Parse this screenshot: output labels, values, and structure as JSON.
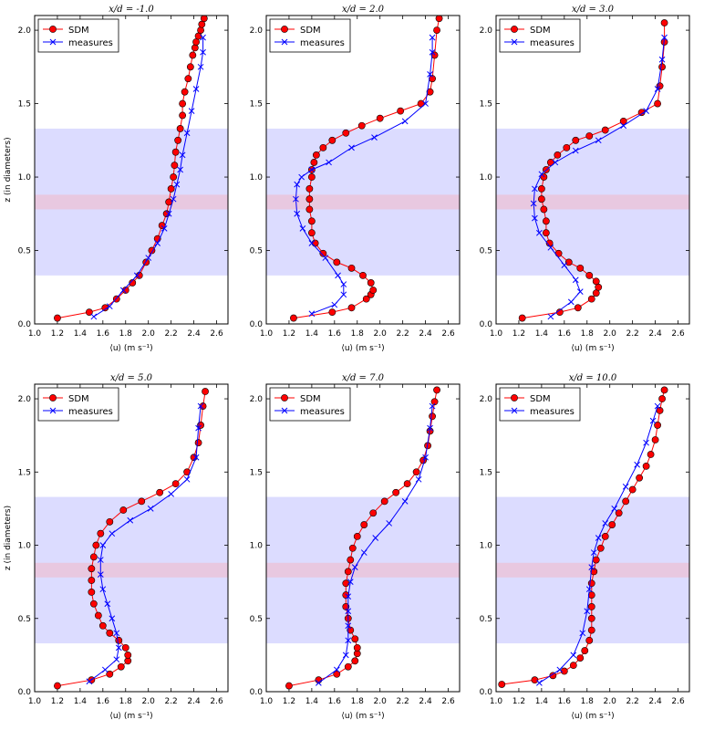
{
  "chart_data": [
    {
      "type": "line",
      "title": "x/d = -1.0",
      "xlabel": "⟨u⟩ (m s⁻¹)",
      "ylabel": "z (in diameters)",
      "xlim": [
        1.0,
        2.7
      ],
      "ylim": [
        0.0,
        2.1
      ],
      "xticks": [
        "1.0",
        "1.2",
        "1.4",
        "1.6",
        "1.8",
        "2.0",
        "2.2",
        "2.4",
        "2.6"
      ],
      "yticks": [
        "0.0",
        "0.5",
        "1.0",
        "1.5",
        "2.0"
      ],
      "legend": {
        "position": "top-left",
        "entries": [
          "SDM",
          "measures"
        ]
      },
      "shaded_bands": [
        {
          "y0": 0.33,
          "y1": 1.33,
          "color": "#dcdcff"
        },
        {
          "y0": 0.78,
          "y1": 0.88,
          "color": "#e8c8e0"
        }
      ],
      "series": [
        {
          "name": "SDM",
          "color": "#ff0000",
          "marker": "o",
          "x": [
            1.2,
            1.48,
            1.62,
            1.72,
            1.8,
            1.86,
            1.92,
            1.98,
            2.03,
            2.08,
            2.12,
            2.16,
            2.18,
            2.2,
            2.22,
            2.23,
            2.24,
            2.26,
            2.28,
            2.3,
            2.3,
            2.32,
            2.35,
            2.37,
            2.39,
            2.41,
            2.42,
            2.44,
            2.46,
            2.47,
            2.49
          ],
          "y": [
            0.04,
            0.08,
            0.11,
            0.17,
            0.23,
            0.28,
            0.33,
            0.42,
            0.5,
            0.58,
            0.67,
            0.75,
            0.83,
            0.92,
            1.0,
            1.08,
            1.17,
            1.25,
            1.33,
            1.42,
            1.5,
            1.58,
            1.67,
            1.75,
            1.83,
            1.88,
            1.92,
            1.96,
            2.0,
            2.04,
            2.08
          ]
        },
        {
          "name": "measures",
          "color": "#0000ff",
          "marker": "x",
          "x": [
            1.52,
            1.66,
            1.78,
            1.9,
            2.0,
            2.08,
            2.14,
            2.18,
            2.22,
            2.25,
            2.28,
            2.3,
            2.34,
            2.38,
            2.42,
            2.46,
            2.48,
            2.48
          ],
          "y": [
            0.05,
            0.12,
            0.23,
            0.33,
            0.45,
            0.55,
            0.65,
            0.75,
            0.85,
            0.95,
            1.05,
            1.15,
            1.3,
            1.45,
            1.6,
            1.75,
            1.85,
            1.95
          ]
        }
      ]
    },
    {
      "type": "line",
      "title": "x/d = 2.0",
      "xlabel": "⟨u⟩ (m s⁻¹)",
      "ylabel": "",
      "xlim": [
        1.0,
        2.7
      ],
      "ylim": [
        0.0,
        2.1
      ],
      "xticks": [
        "1.0",
        "1.2",
        "1.4",
        "1.6",
        "1.8",
        "2.0",
        "2.2",
        "2.4",
        "2.6"
      ],
      "yticks": [
        "0.0",
        "0.5",
        "1.0",
        "1.5",
        "2.0"
      ],
      "legend": {
        "position": "top-left",
        "entries": [
          "SDM",
          "measures"
        ]
      },
      "shaded_bands": [
        {
          "y0": 0.33,
          "y1": 1.33,
          "color": "#dcdcff"
        },
        {
          "y0": 0.78,
          "y1": 0.88,
          "color": "#e8c8e0"
        }
      ],
      "series": [
        {
          "name": "SDM",
          "color": "#ff0000",
          "marker": "o",
          "x": [
            1.24,
            1.58,
            1.75,
            1.88,
            1.92,
            1.94,
            1.92,
            1.85,
            1.75,
            1.62,
            1.5,
            1.43,
            1.4,
            1.4,
            1.38,
            1.38,
            1.38,
            1.4,
            1.4,
            1.42,
            1.44,
            1.5,
            1.58,
            1.7,
            1.84,
            2.0,
            2.18,
            2.36,
            2.44,
            2.46,
            2.48,
            2.5,
            2.52
          ],
          "y": [
            0.04,
            0.08,
            0.11,
            0.17,
            0.2,
            0.23,
            0.28,
            0.33,
            0.38,
            0.42,
            0.48,
            0.55,
            0.62,
            0.7,
            0.78,
            0.85,
            0.92,
            1.0,
            1.05,
            1.1,
            1.15,
            1.2,
            1.25,
            1.3,
            1.35,
            1.4,
            1.45,
            1.5,
            1.58,
            1.67,
            1.83,
            2.0,
            2.08
          ]
        },
        {
          "name": "measures",
          "color": "#0000ff",
          "marker": "x",
          "x": [
            1.4,
            1.6,
            1.68,
            1.68,
            1.63,
            1.52,
            1.4,
            1.32,
            1.27,
            1.26,
            1.27,
            1.31,
            1.4,
            1.55,
            1.75,
            1.95,
            2.22,
            2.4,
            2.44,
            2.46,
            2.46
          ],
          "y": [
            0.07,
            0.13,
            0.2,
            0.27,
            0.33,
            0.45,
            0.55,
            0.65,
            0.75,
            0.85,
            0.95,
            1.0,
            1.05,
            1.1,
            1.2,
            1.27,
            1.38,
            1.5,
            1.7,
            1.85,
            1.95
          ]
        }
      ]
    },
    {
      "type": "line",
      "title": "x/d = 3.0",
      "xlabel": "⟨u⟩ (m s⁻¹)",
      "ylabel": "",
      "xlim": [
        1.0,
        2.7
      ],
      "ylim": [
        0.0,
        2.1
      ],
      "xticks": [
        "1.0",
        "1.2",
        "1.4",
        "1.6",
        "1.8",
        "2.0",
        "2.2",
        "2.4",
        "2.6"
      ],
      "yticks": [
        "0.0",
        "0.5",
        "1.0",
        "1.5",
        "2.0"
      ],
      "legend": {
        "position": "top-left",
        "entries": [
          "SDM",
          "measures"
        ]
      },
      "shaded_bands": [
        {
          "y0": 0.33,
          "y1": 1.33,
          "color": "#dcdcff"
        },
        {
          "y0": 0.78,
          "y1": 0.88,
          "color": "#e8c8e0"
        }
      ],
      "series": [
        {
          "name": "SDM",
          "color": "#ff0000",
          "marker": "o",
          "x": [
            1.23,
            1.56,
            1.72,
            1.84,
            1.88,
            1.9,
            1.88,
            1.82,
            1.74,
            1.64,
            1.55,
            1.47,
            1.44,
            1.44,
            1.42,
            1.4,
            1.4,
            1.42,
            1.44,
            1.48,
            1.54,
            1.62,
            1.7,
            1.82,
            1.96,
            2.12,
            2.28,
            2.42,
            2.44,
            2.46,
            2.48,
            2.48
          ],
          "y": [
            0.04,
            0.08,
            0.11,
            0.17,
            0.21,
            0.25,
            0.29,
            0.33,
            0.38,
            0.42,
            0.48,
            0.55,
            0.62,
            0.7,
            0.78,
            0.85,
            0.92,
            1.0,
            1.05,
            1.1,
            1.15,
            1.2,
            1.25,
            1.28,
            1.32,
            1.38,
            1.44,
            1.5,
            1.62,
            1.75,
            1.92,
            2.05
          ]
        },
        {
          "name": "measures",
          "color": "#0000ff",
          "marker": "x",
          "x": [
            1.48,
            1.66,
            1.74,
            1.7,
            1.6,
            1.48,
            1.38,
            1.34,
            1.33,
            1.34,
            1.4,
            1.52,
            1.7,
            1.9,
            2.12,
            2.32,
            2.42,
            2.46,
            2.48
          ],
          "y": [
            0.05,
            0.15,
            0.22,
            0.3,
            0.4,
            0.52,
            0.62,
            0.72,
            0.82,
            0.92,
            1.02,
            1.1,
            1.18,
            1.25,
            1.35,
            1.45,
            1.6,
            1.8,
            1.95
          ]
        }
      ]
    },
    {
      "type": "line",
      "title": "x/d = 5.0",
      "xlabel": "⟨u⟩ (m s⁻¹)",
      "ylabel": "z (in diameters)",
      "xlim": [
        1.0,
        2.7
      ],
      "ylim": [
        0.0,
        2.1
      ],
      "xticks": [
        "1.0",
        "1.2",
        "1.4",
        "1.6",
        "1.8",
        "2.0",
        "2.2",
        "2.4",
        "2.6"
      ],
      "yticks": [
        "0.0",
        "0.5",
        "1.0",
        "1.5",
        "2.0"
      ],
      "legend": {
        "position": "top-left",
        "entries": [
          "SDM",
          "measures"
        ]
      },
      "shaded_bands": [
        {
          "y0": 0.33,
          "y1": 1.33,
          "color": "#dcdcff"
        },
        {
          "y0": 0.78,
          "y1": 0.88,
          "color": "#e8c8e0"
        }
      ],
      "series": [
        {
          "name": "SDM",
          "color": "#ff0000",
          "marker": "o",
          "x": [
            1.2,
            1.5,
            1.66,
            1.76,
            1.82,
            1.82,
            1.8,
            1.74,
            1.66,
            1.6,
            1.56,
            1.52,
            1.5,
            1.5,
            1.5,
            1.52,
            1.54,
            1.58,
            1.66,
            1.78,
            1.94,
            2.1,
            2.24,
            2.34,
            2.4,
            2.44,
            2.46,
            2.48,
            2.5
          ],
          "y": [
            0.04,
            0.08,
            0.12,
            0.17,
            0.21,
            0.25,
            0.3,
            0.35,
            0.4,
            0.45,
            0.52,
            0.6,
            0.68,
            0.76,
            0.84,
            0.92,
            1.0,
            1.08,
            1.16,
            1.24,
            1.3,
            1.36,
            1.42,
            1.5,
            1.6,
            1.7,
            1.82,
            1.95,
            2.05
          ]
        },
        {
          "name": "measures",
          "color": "#0000ff",
          "marker": "x",
          "x": [
            1.48,
            1.62,
            1.72,
            1.74,
            1.72,
            1.68,
            1.64,
            1.6,
            1.58,
            1.58,
            1.6,
            1.68,
            1.84,
            2.02,
            2.2,
            2.34,
            2.42,
            2.44,
            2.46
          ],
          "y": [
            0.07,
            0.15,
            0.22,
            0.3,
            0.4,
            0.5,
            0.6,
            0.7,
            0.8,
            0.9,
            1.0,
            1.08,
            1.17,
            1.25,
            1.35,
            1.45,
            1.6,
            1.8,
            1.95
          ]
        }
      ]
    },
    {
      "type": "line",
      "title": "x/d = 7.0",
      "xlabel": "⟨u⟩ (m s⁻¹)",
      "ylabel": "",
      "xlim": [
        1.0,
        2.7
      ],
      "ylim": [
        0.0,
        2.1
      ],
      "xticks": [
        "1.0",
        "1.2",
        "1.4",
        "1.6",
        "1.8",
        "2.0",
        "2.2",
        "2.4",
        "2.6"
      ],
      "yticks": [
        "0.0",
        "0.5",
        "1.0",
        "1.5",
        "2.0"
      ],
      "legend": {
        "position": "top-left",
        "entries": [
          "SDM",
          "measures"
        ]
      },
      "shaded_bands": [
        {
          "y0": 0.33,
          "y1": 1.33,
          "color": "#dcdcff"
        },
        {
          "y0": 0.78,
          "y1": 0.88,
          "color": "#e8c8e0"
        }
      ],
      "series": [
        {
          "name": "SDM",
          "color": "#ff0000",
          "marker": "o",
          "x": [
            1.2,
            1.46,
            1.62,
            1.72,
            1.78,
            1.8,
            1.8,
            1.78,
            1.74,
            1.72,
            1.7,
            1.7,
            1.7,
            1.72,
            1.74,
            1.76,
            1.8,
            1.86,
            1.94,
            2.04,
            2.14,
            2.24,
            2.32,
            2.38,
            2.42,
            2.44,
            2.46,
            2.48,
            2.5
          ],
          "y": [
            0.04,
            0.08,
            0.12,
            0.17,
            0.21,
            0.26,
            0.3,
            0.36,
            0.42,
            0.5,
            0.58,
            0.66,
            0.74,
            0.82,
            0.9,
            0.98,
            1.06,
            1.14,
            1.22,
            1.3,
            1.36,
            1.42,
            1.5,
            1.58,
            1.68,
            1.78,
            1.88,
            1.98,
            2.06
          ]
        },
        {
          "name": "measures",
          "color": "#0000ff",
          "marker": "x",
          "x": [
            1.46,
            1.62,
            1.7,
            1.72,
            1.72,
            1.72,
            1.72,
            1.74,
            1.78,
            1.86,
            1.96,
            2.08,
            2.22,
            2.34,
            2.4,
            2.44,
            2.46
          ],
          "y": [
            0.06,
            0.15,
            0.25,
            0.35,
            0.45,
            0.55,
            0.65,
            0.75,
            0.85,
            0.95,
            1.05,
            1.15,
            1.3,
            1.45,
            1.6,
            1.8,
            1.95
          ]
        }
      ]
    },
    {
      "type": "line",
      "title": "x/d = 10.0",
      "xlabel": "⟨u⟩ (m s⁻¹)",
      "ylabel": "",
      "xlim": [
        1.0,
        2.7
      ],
      "ylim": [
        0.0,
        2.1
      ],
      "xticks": [
        "1.0",
        "1.2",
        "1.4",
        "1.6",
        "1.8",
        "2.0",
        "2.2",
        "2.4",
        "2.6"
      ],
      "yticks": [
        "0.0",
        "0.5",
        "1.0",
        "1.5",
        "2.0"
      ],
      "legend": {
        "position": "top-left",
        "entries": [
          "SDM",
          "measures"
        ]
      },
      "shaded_bands": [
        {
          "y0": 0.33,
          "y1": 1.33,
          "color": "#dcdcff"
        },
        {
          "y0": 0.78,
          "y1": 0.88,
          "color": "#e8c8e0"
        }
      ],
      "series": [
        {
          "name": "SDM",
          "color": "#ff0000",
          "marker": "o",
          "x": [
            1.05,
            1.34,
            1.5,
            1.6,
            1.68,
            1.74,
            1.78,
            1.82,
            1.84,
            1.84,
            1.84,
            1.84,
            1.84,
            1.86,
            1.88,
            1.92,
            1.96,
            2.02,
            2.08,
            2.14,
            2.2,
            2.26,
            2.32,
            2.36,
            2.4,
            2.42,
            2.44,
            2.46,
            2.48
          ],
          "y": [
            0.05,
            0.08,
            0.11,
            0.14,
            0.18,
            0.23,
            0.28,
            0.35,
            0.42,
            0.5,
            0.58,
            0.66,
            0.74,
            0.82,
            0.9,
            0.98,
            1.06,
            1.14,
            1.22,
            1.3,
            1.38,
            1.46,
            1.54,
            1.62,
            1.72,
            1.82,
            1.92,
            2.0,
            2.06
          ]
        },
        {
          "name": "measures",
          "color": "#0000ff",
          "marker": "x",
          "x": [
            1.38,
            1.56,
            1.68,
            1.76,
            1.8,
            1.82,
            1.84,
            1.86,
            1.9,
            1.96,
            2.04,
            2.14,
            2.24,
            2.32,
            2.38,
            2.42
          ],
          "y": [
            0.06,
            0.15,
            0.25,
            0.4,
            0.55,
            0.7,
            0.85,
            0.95,
            1.05,
            1.15,
            1.25,
            1.4,
            1.55,
            1.7,
            1.85,
            1.95
          ]
        }
      ]
    }
  ]
}
